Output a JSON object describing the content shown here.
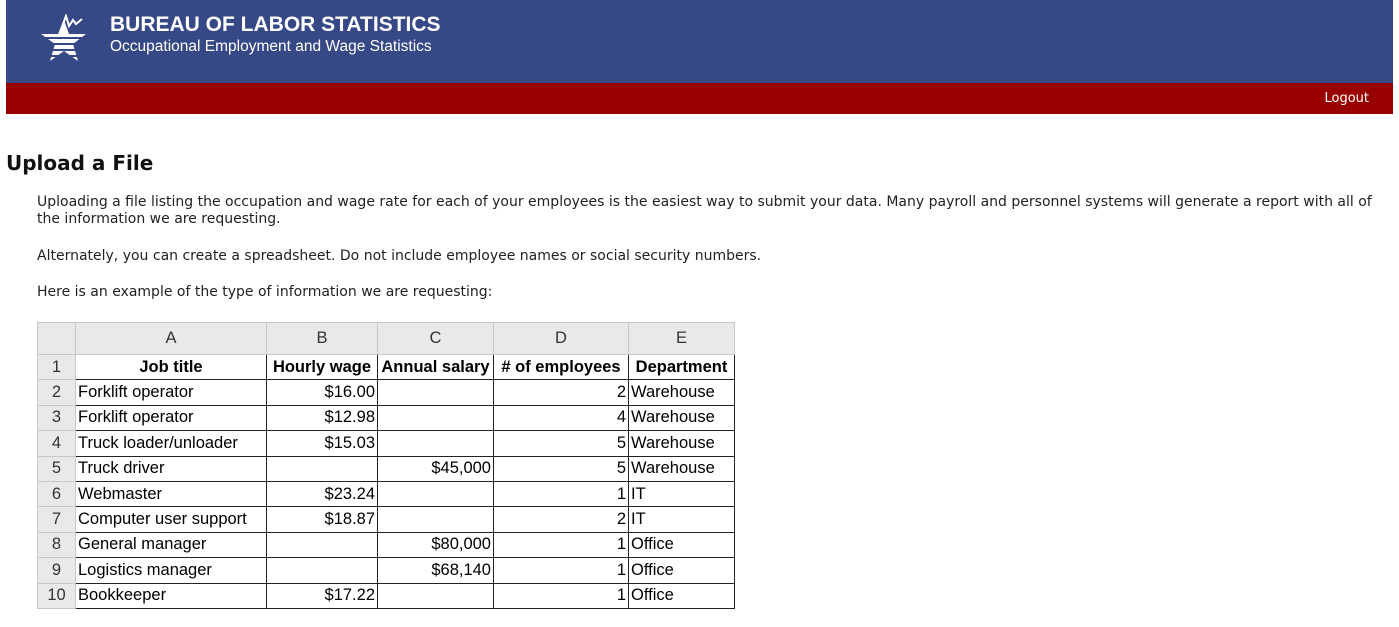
{
  "header": {
    "title": "BUREAU OF LABOR STATISTICS",
    "subtitle": "Occupational Employment and Wage Statistics",
    "logo_icon": "bls-star-logo",
    "bg": "#364886"
  },
  "nav": {
    "logout": "Logout",
    "bg": "#990000"
  },
  "main": {
    "title": "Upload a File",
    "p1": "Uploading a file listing the occupation and wage rate for each of your employees is the easiest way to submit your data. Many payroll and personnel systems will generate a report with all of the information we are requesting.",
    "p2": "Alternately, you can create a spreadsheet. Do not include employee names or social security numbers.",
    "p3": "Here is an example of the type of information we are requesting:"
  },
  "sheet": {
    "columns": [
      "A",
      "B",
      "C",
      "D",
      "E"
    ],
    "headers": [
      "Job title",
      "Hourly wage",
      "Annual salary",
      "# of employees",
      "Department"
    ],
    "rows": [
      [
        "2",
        "Forklift operator",
        "$16.00",
        "",
        "2",
        "Warehouse"
      ],
      [
        "3",
        "Forklift operator",
        "$12.98",
        "",
        "4",
        "Warehouse"
      ],
      [
        "4",
        "Truck loader/unloader",
        "$15.03",
        "",
        "5",
        "Warehouse"
      ],
      [
        "5",
        "Truck driver",
        "",
        "$45,000",
        "5",
        "Warehouse"
      ],
      [
        "6",
        "Webmaster",
        "$23.24",
        "",
        "1",
        "IT"
      ],
      [
        "7",
        "Computer user support",
        "$18.87",
        "",
        "2",
        "IT"
      ],
      [
        "8",
        "General manager",
        "",
        "$80,000",
        "1",
        "Office"
      ],
      [
        "9",
        "Logistics manager",
        "",
        "$68,140",
        "1",
        "Office"
      ],
      [
        "10",
        "Bookkeeper",
        "$17.22",
        "",
        "1",
        "Office"
      ]
    ]
  }
}
